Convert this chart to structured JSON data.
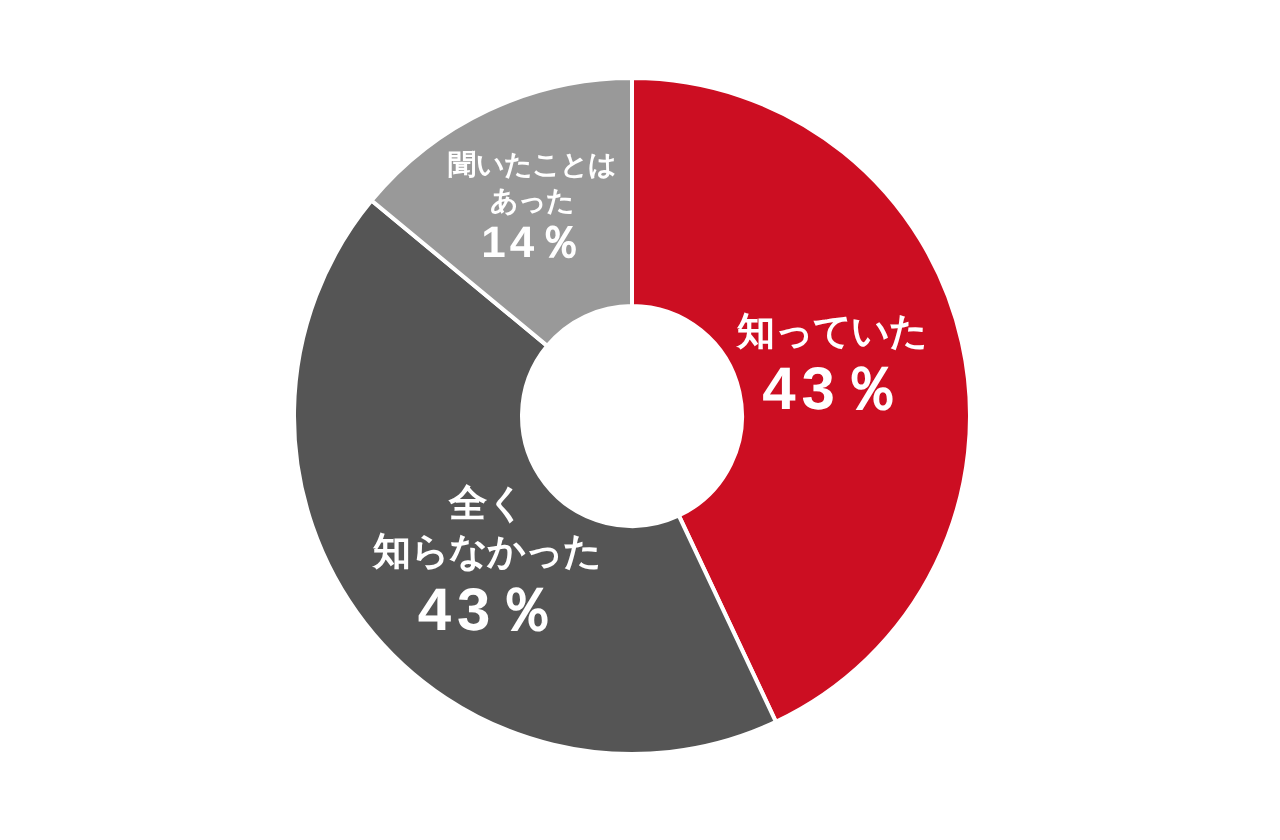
{
  "chart_data": {
    "type": "donut",
    "categories": [
      "知っていた",
      "全く知らなかった",
      "聞いたことはあった"
    ],
    "values": [
      43,
      43,
      14
    ],
    "colors": [
      "#cc0e22",
      "#555555",
      "#999999"
    ],
    "value_labels": [
      "43％",
      "43％",
      "14％"
    ]
  }
}
